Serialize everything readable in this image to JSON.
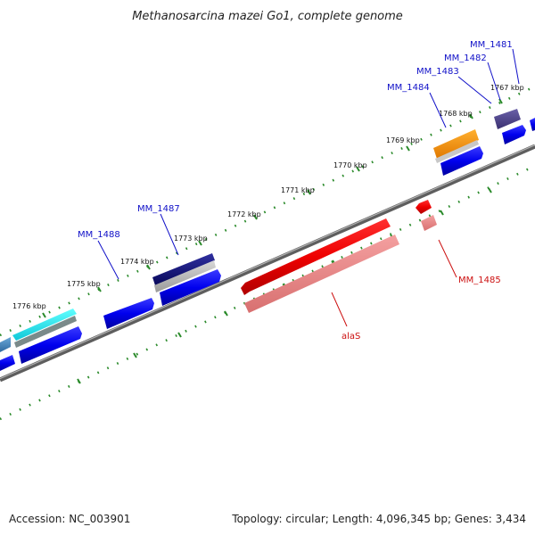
{
  "title": "Methanosarcina mazei Go1, complete genome",
  "footer": {
    "accession": "Accession: NC_003901",
    "summary": "Topology: circular; Length: 4,096,345 bp; Genes: 3,434"
  },
  "colors": {
    "forward_label": "#1010c8",
    "reverse_label": "#cc1010",
    "tick": "#2a8a2a",
    "backbone": "#7a7a7a"
  },
  "ticks": [
    "1776 kbp",
    "1775 kbp",
    "1774 kbp",
    "1773 kbp",
    "1772 kbp",
    "1771 kbp",
    "1770 kbp",
    "1769 kbp",
    "1768 kbp",
    "1767 kbp"
  ],
  "forward_genes": [
    "MM_1488",
    "MM_1487",
    "MM_1484",
    "MM_1483",
    "MM_1482",
    "MM_1481"
  ],
  "reverse_genes": [
    "alaS",
    "MM_1485"
  ]
}
